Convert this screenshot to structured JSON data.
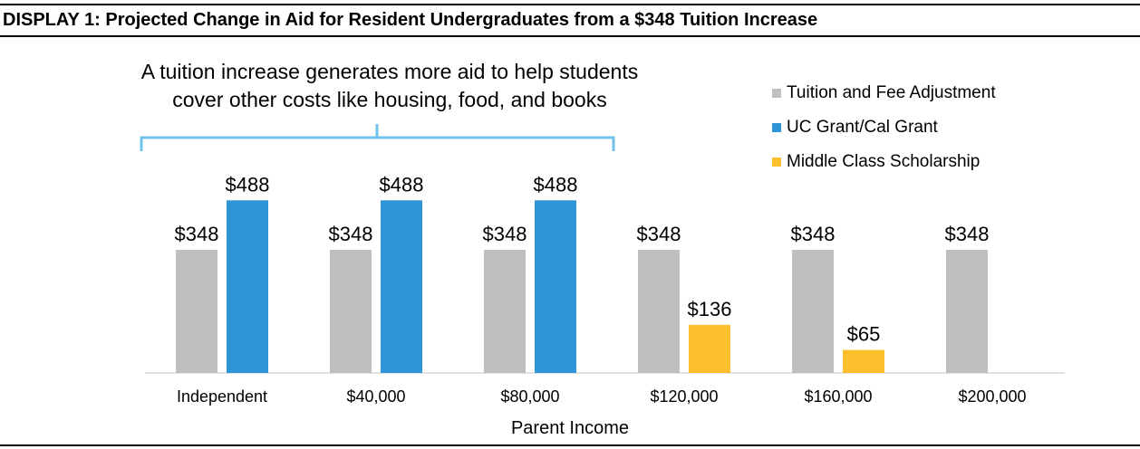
{
  "display_title": "DISPLAY 1:  Projected Change in Aid for Resident Undergraduates from a $348 Tuition Increase",
  "annotation": {
    "line1": "A tuition increase generates more aid to help students",
    "line2": "cover other costs like housing, food, and books"
  },
  "colors": {
    "tuition": "#bfbfbf",
    "grant": "#2e96d6",
    "scholarship": "#fbbf2d",
    "bracket": "#71c2e8"
  },
  "chart_data": {
    "type": "bar",
    "title": "",
    "xlabel": "Parent Income",
    "ylabel": "",
    "ylim": [
      0,
      500
    ],
    "categories": [
      "Independent",
      "$40,000",
      "$80,000",
      "$120,000",
      "$160,000",
      "$200,000"
    ],
    "legend_position": "top-right",
    "series": [
      {
        "name": "Tuition and Fee Adjustment",
        "color": "#bfbfbf",
        "values": [
          348,
          348,
          348,
          348,
          348,
          348
        ],
        "labels": [
          "$348",
          "$348",
          "$348",
          "$348",
          "$348",
          "$348"
        ]
      },
      {
        "name": "UC Grant/Cal Grant",
        "color": "#2e96d6",
        "values": [
          488,
          488,
          488,
          null,
          null,
          null
        ],
        "labels": [
          "$488",
          "$488",
          "$488",
          null,
          null,
          null
        ]
      },
      {
        "name": "Middle Class Scholarship",
        "color": "#fbbf2d",
        "values": [
          null,
          null,
          null,
          136,
          65,
          null
        ],
        "labels": [
          null,
          null,
          null,
          "$136",
          "$65",
          null
        ]
      }
    ]
  }
}
